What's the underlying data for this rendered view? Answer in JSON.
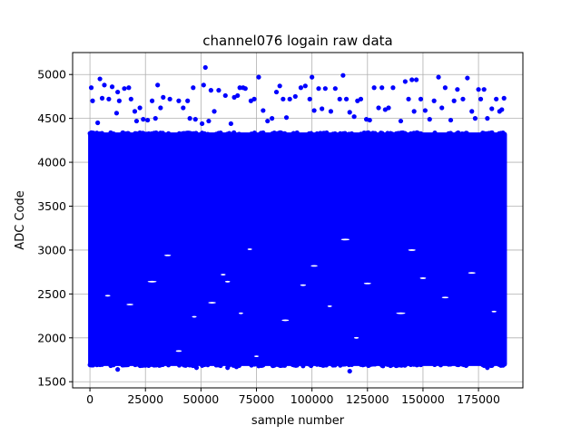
{
  "chart_data": {
    "type": "scatter",
    "title": "channel076 logain raw data",
    "xlabel": "sample number",
    "ylabel": "ADC Code",
    "xlim": [
      -7800,
      195000
    ],
    "ylim": [
      1430,
      5250
    ],
    "grid": true,
    "x_ticks": [
      0,
      25000,
      50000,
      75000,
      100000,
      125000,
      150000,
      175000
    ],
    "y_ticks": [
      1500,
      2000,
      2500,
      3000,
      3500,
      4000,
      4500,
      5000
    ],
    "series": [
      {
        "color": "#0000ff",
        "x_range": [
          0,
          187000
        ],
        "dense_band": [
          1700,
          4320
        ],
        "outliers_high": [
          [
            600,
            4850
          ],
          [
            1200,
            4700
          ],
          [
            3500,
            4450
          ],
          [
            4500,
            4950
          ],
          [
            5500,
            4730
          ],
          [
            6500,
            4880
          ],
          [
            8500,
            4720
          ],
          [
            10000,
            4860
          ],
          [
            12000,
            4560
          ],
          [
            12500,
            4800
          ],
          [
            13200,
            4700
          ],
          [
            15500,
            4840
          ],
          [
            17500,
            4850
          ],
          [
            18500,
            4720
          ],
          [
            20200,
            4580
          ],
          [
            21000,
            4470
          ],
          [
            22500,
            4620
          ],
          [
            24000,
            4490
          ],
          [
            26000,
            4480
          ],
          [
            28000,
            4700
          ],
          [
            29500,
            4500
          ],
          [
            30500,
            4880
          ],
          [
            31800,
            4620
          ],
          [
            33000,
            4740
          ],
          [
            36000,
            4720
          ],
          [
            40000,
            4700
          ],
          [
            42000,
            4620
          ],
          [
            44000,
            4700
          ],
          [
            45000,
            4500
          ],
          [
            46500,
            4850
          ],
          [
            47500,
            4490
          ],
          [
            50500,
            4440
          ],
          [
            51200,
            4880
          ],
          [
            52000,
            5080
          ],
          [
            53500,
            4470
          ],
          [
            54500,
            4820
          ],
          [
            56000,
            4580
          ],
          [
            58000,
            4820
          ],
          [
            61000,
            4760
          ],
          [
            63500,
            4440
          ],
          [
            65000,
            4740
          ],
          [
            66500,
            4760
          ],
          [
            67500,
            4850
          ],
          [
            69000,
            4850
          ],
          [
            70000,
            4840
          ],
          [
            72500,
            4700
          ],
          [
            74000,
            4720
          ],
          [
            76000,
            4970
          ],
          [
            78000,
            4590
          ],
          [
            80000,
            4470
          ],
          [
            82000,
            4500
          ],
          [
            84000,
            4800
          ],
          [
            85500,
            4870
          ],
          [
            87000,
            4720
          ],
          [
            88500,
            4510
          ],
          [
            90000,
            4720
          ],
          [
            92500,
            4750
          ],
          [
            95000,
            4850
          ],
          [
            97000,
            4870
          ],
          [
            99000,
            4720
          ],
          [
            100000,
            4970
          ],
          [
            101000,
            4590
          ],
          [
            103000,
            4840
          ],
          [
            104500,
            4610
          ],
          [
            106000,
            4840
          ],
          [
            108500,
            4580
          ],
          [
            110500,
            4840
          ],
          [
            112500,
            4720
          ],
          [
            114000,
            4990
          ],
          [
            115500,
            4720
          ],
          [
            117000,
            4570
          ],
          [
            119000,
            4520
          ],
          [
            120500,
            4700
          ],
          [
            122000,
            4720
          ],
          [
            124500,
            4490
          ],
          [
            126000,
            4480
          ],
          [
            128000,
            4850
          ],
          [
            130000,
            4620
          ],
          [
            131500,
            4850
          ],
          [
            133000,
            4600
          ],
          [
            134500,
            4620
          ],
          [
            136500,
            4850
          ],
          [
            140000,
            4470
          ],
          [
            142000,
            4920
          ],
          [
            143500,
            4720
          ],
          [
            145000,
            4940
          ],
          [
            146000,
            4580
          ],
          [
            147000,
            4940
          ],
          [
            149000,
            4720
          ],
          [
            151000,
            4590
          ],
          [
            153000,
            4490
          ],
          [
            155000,
            4700
          ],
          [
            157000,
            4970
          ],
          [
            158500,
            4620
          ],
          [
            160000,
            4850
          ],
          [
            162500,
            4480
          ],
          [
            164000,
            4700
          ],
          [
            165500,
            4830
          ],
          [
            168000,
            4720
          ],
          [
            170000,
            4960
          ],
          [
            172000,
            4580
          ],
          [
            173500,
            4500
          ],
          [
            175000,
            4830
          ],
          [
            176000,
            4720
          ],
          [
            177500,
            4830
          ],
          [
            179000,
            4500
          ],
          [
            181000,
            4610
          ],
          [
            183000,
            4720
          ],
          [
            184500,
            4580
          ],
          [
            185500,
            4600
          ],
          [
            186500,
            4730
          ]
        ],
        "outliers_low": [
          [
            12500,
            1640
          ],
          [
            48000,
            1660
          ],
          [
            52000,
            1700
          ],
          [
            62000,
            1660
          ],
          [
            66000,
            1670
          ],
          [
            76000,
            1680
          ],
          [
            96000,
            1680
          ],
          [
            117000,
            1620
          ],
          [
            132000,
            1680
          ],
          [
            158000,
            1690
          ],
          [
            179000,
            1660
          ]
        ],
        "gaps": [
          [
            40000,
            1850
          ],
          [
            47000,
            2240
          ],
          [
            55000,
            2400
          ],
          [
            62000,
            2640
          ],
          [
            75000,
            1790
          ],
          [
            60000,
            2720
          ],
          [
            72000,
            3010
          ],
          [
            88000,
            2200
          ],
          [
            96000,
            2600
          ],
          [
            101000,
            2820
          ],
          [
            108000,
            2360
          ],
          [
            125000,
            2620
          ],
          [
            115000,
            3120
          ],
          [
            140000,
            2280
          ],
          [
            150000,
            2680
          ],
          [
            160000,
            2460
          ],
          [
            172000,
            2740
          ],
          [
            182000,
            2300
          ],
          [
            28000,
            2640
          ],
          [
            18000,
            2380
          ],
          [
            8000,
            2480
          ],
          [
            35000,
            2940
          ],
          [
            68000,
            2280
          ],
          [
            120000,
            2000
          ],
          [
            145000,
            3000
          ]
        ]
      }
    ]
  }
}
